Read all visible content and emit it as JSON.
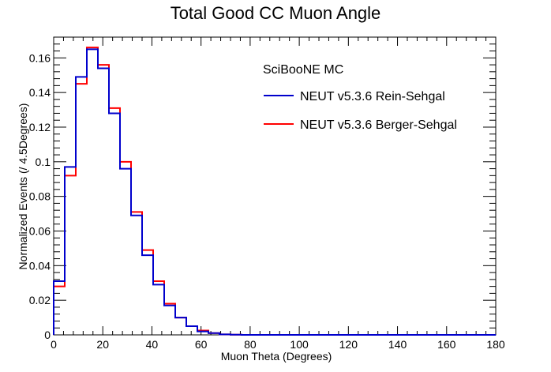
{
  "chart_data": {
    "type": "line",
    "title": "Total Good CC Muon Angle",
    "xlabel": "Muon Theta (Degrees)",
    "ylabel": "Normalized Events (/ 4.5Degrees)",
    "xlim": [
      0,
      180
    ],
    "ylim": [
      0,
      0.172
    ],
    "bin_width": 4.5,
    "x_ticks": [
      "0",
      "20",
      "40",
      "60",
      "80",
      "100",
      "120",
      "140",
      "160",
      "180"
    ],
    "y_ticks": [
      "0",
      "0.02",
      "0.04",
      "0.06",
      "0.08",
      "0.1",
      "0.12",
      "0.14",
      "0.16"
    ],
    "grid": false,
    "legend_placement": "top-right",
    "legend_header": "SciBooNE MC",
    "series": [
      {
        "name": "NEUT v5.3.6 Rein-Sehgal",
        "color": "#0000cc",
        "values": [
          0.031,
          0.097,
          0.149,
          0.165,
          0.154,
          0.128,
          0.096,
          0.069,
          0.046,
          0.029,
          0.017,
          0.01,
          0.005,
          0.002,
          0.001,
          0.0003,
          0.0001,
          0,
          0,
          0,
          0,
          0,
          0,
          0,
          0,
          0,
          0,
          0,
          0,
          0,
          0,
          0,
          0,
          0,
          0,
          0,
          0,
          0,
          0,
          0
        ]
      },
      {
        "name": "NEUT v5.3.6 Berger-Sehgal",
        "color": "#ff0000",
        "values": [
          0.028,
          0.092,
          0.145,
          0.166,
          0.156,
          0.131,
          0.1,
          0.071,
          0.049,
          0.031,
          0.018,
          0.01,
          0.005,
          0.0025,
          0.001,
          0.0003,
          0.0001,
          0,
          0,
          0,
          0,
          0,
          0,
          0,
          0,
          0,
          0,
          0,
          0,
          0,
          0,
          0,
          0,
          0,
          0,
          0,
          0,
          0,
          0,
          0
        ]
      }
    ]
  }
}
